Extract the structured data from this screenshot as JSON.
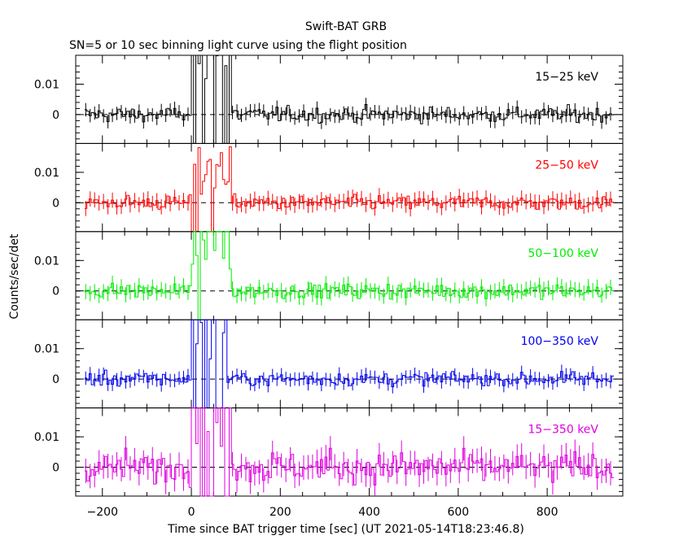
{
  "header": {
    "title": "Swift-BAT GRB",
    "subtitle": "SN=5 or 10 sec binning light curve using the flight position"
  },
  "axes": {
    "xlabel": "Time since BAT trigger time [sec] (UT 2021-05-14T18:23:46.8)",
    "ylabel": "Counts/sec/det",
    "xticks": [
      "−200",
      "0",
      "200",
      "400",
      "600",
      "800"
    ],
    "yticks": [
      "0.01",
      "0"
    ]
  },
  "chart_data": {
    "type": "line",
    "subtype": "step light curve with error bars, stacked panels",
    "x_range": [
      -260,
      970
    ],
    "y_range": [
      -0.0095,
      0.0195
    ],
    "bin_sec": 5,
    "xticks": [
      -200,
      0,
      200,
      400,
      600,
      800
    ],
    "yticks": [
      0,
      0.01
    ],
    "dashed_zero_line": true,
    "series": [
      {
        "name": "15−25 keV",
        "color": "#000000",
        "peak_start": 0,
        "peak_end": 90,
        "peak_level": 0.035,
        "noise": 0.0022,
        "errbar": 0.0022
      },
      {
        "name": "25−50 keV",
        "color": "#ff0000",
        "peak_start": 0,
        "peak_end": 90,
        "peak_level": 0.012,
        "noise": 0.0021,
        "errbar": 0.0025
      },
      {
        "name": "50−100 keV",
        "color": "#00ee00",
        "peak_start": 0,
        "peak_end": 90,
        "peak_level": 0.022,
        "noise": 0.0022,
        "errbar": 0.0025
      },
      {
        "name": "100−350 keV",
        "color": "#0000ee",
        "peak_start": 0,
        "peak_end": 80,
        "peak_level": 0.025,
        "noise": 0.0021,
        "errbar": 0.0022
      },
      {
        "name": "15−350 keV",
        "color": "#e000e0",
        "peak_start": 0,
        "peak_end": 90,
        "peak_level": 0.035,
        "noise": 0.0045,
        "errbar": 0.004
      }
    ]
  }
}
